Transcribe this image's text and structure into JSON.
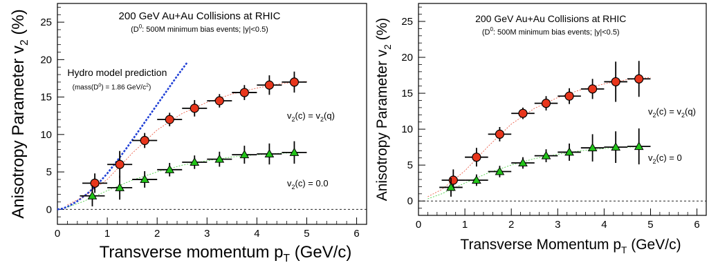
{
  "chart_data": [
    {
      "type": "scatter",
      "title": "200 GeV Au+Au Collisions at RHIC",
      "subtitle_pre": "(D",
      "subtitle_sup": "0",
      "subtitle_post": ": 500M minimum bias events; |y|<0.5)",
      "xlabel": "Transverse momentum p",
      "xlabel_sub": "T",
      "xlabel_unit": " (GeV/c)",
      "ylabel": "Anisotropy Parameter v",
      "ylabel_sub": "2",
      "ylabel_unit": " (%)",
      "xlim": [
        0,
        6.2
      ],
      "ylim": [
        -2,
        27.5
      ],
      "xticks": [
        "0",
        "1",
        "2",
        "3",
        "4",
        "5",
        "6"
      ],
      "yticks": [
        "0",
        "5",
        "10",
        "15",
        "20",
        "25"
      ],
      "hydro_label": "Hydro model prediction",
      "hydro_sublabel_pre": "(mass(D",
      "hydro_sublabel_sup": "0",
      "hydro_sublabel_mid": ") = 1.86 GeV/c",
      "hydro_sublabel_sup2": "2",
      "hydro_sublabel_post": ")",
      "hydro_curve": {
        "color": "#1f3fd6",
        "x": [
          0,
          0.1,
          0.2,
          0.3,
          0.4,
          0.5,
          0.6,
          0.8,
          1.0,
          1.2,
          1.4,
          1.6,
          1.8,
          2.0,
          2.2,
          2.4,
          2.6
        ],
        "y": [
          0,
          0.1,
          0.35,
          0.7,
          1.1,
          1.6,
          2.1,
          3.3,
          4.8,
          6.5,
          8.3,
          10.2,
          12.1,
          14.0,
          15.9,
          17.8,
          19.6
        ]
      },
      "series": [
        {
          "name_pre": "v",
          "name_sub": "2",
          "name_mid": "(c) = v",
          "name_sub2": "2",
          "name_post": "(q)",
          "marker": "circle",
          "color": "#e8361c",
          "x": [
            0.75,
            1.25,
            1.75,
            2.25,
            2.75,
            3.25,
            3.75,
            4.25,
            4.75
          ],
          "y": [
            3.5,
            6.0,
            9.2,
            12.0,
            13.5,
            14.5,
            15.6,
            16.6,
            17.0
          ],
          "yerr": [
            1.3,
            1.8,
            1.0,
            0.9,
            1.1,
            0.9,
            1.0,
            1.3,
            1.4
          ],
          "fit_x": [
            0.2,
            0.5,
            1.0,
            1.5,
            2.0,
            2.5,
            3.0,
            3.5,
            4.0,
            4.5,
            5.0
          ],
          "fit_y": [
            0.6,
            1.6,
            4.0,
            7.5,
            10.6,
            12.8,
            14.3,
            15.4,
            16.2,
            16.8,
            17.1
          ]
        },
        {
          "name_pre": "v",
          "name_sub": "2",
          "name_mid": "(c) = 0.0",
          "name_sub2": "",
          "name_post": "",
          "marker": "triangle",
          "color": "#22c419",
          "x": [
            0.7,
            1.25,
            1.75,
            2.25,
            2.75,
            3.25,
            3.75,
            4.25,
            4.75
          ],
          "y": [
            1.8,
            2.9,
            4.0,
            5.3,
            6.3,
            6.7,
            7.3,
            7.4,
            7.6
          ],
          "yerr": [
            1.4,
            1.6,
            1.1,
            0.9,
            0.9,
            1.0,
            1.2,
            1.4,
            1.5
          ],
          "fit_x": [
            0.2,
            0.5,
            1.0,
            1.5,
            2.0,
            2.5,
            3.0,
            3.5,
            4.0,
            4.5,
            5.0
          ],
          "fit_y": [
            0.3,
            1.0,
            2.5,
            3.9,
            5.0,
            5.9,
            6.5,
            7.0,
            7.3,
            7.5,
            7.6
          ]
        }
      ]
    },
    {
      "type": "scatter",
      "title": "200 GeV Au+Au Collisions at RHIC",
      "subtitle_pre": "(D",
      "subtitle_sup": "0",
      "subtitle_post": ": 500M minimum bias events; |y|<0.5)",
      "xlabel": "Transverse Momentum p",
      "xlabel_sub": "T",
      "xlabel_unit": " (GeV/c)",
      "ylabel": "Anisotropy Parameter v",
      "ylabel_sub": "2",
      "ylabel_unit": " (%)",
      "xlim": [
        0,
        6.2
      ],
      "ylim": [
        -2,
        27.5
      ],
      "xticks": [
        "0",
        "1",
        "2",
        "3",
        "4",
        "5",
        "6"
      ],
      "yticks": [
        "0",
        "5",
        "10",
        "15",
        "20",
        "25"
      ],
      "series": [
        {
          "name_pre": "v",
          "name_sub": "2",
          "name_mid": "(c) = v",
          "name_sub2": "2",
          "name_post": "(q)",
          "marker": "circle",
          "color": "#e8361c",
          "x": [
            0.75,
            1.25,
            1.75,
            2.25,
            2.75,
            3.25,
            3.75,
            4.25,
            4.75
          ],
          "y": [
            2.9,
            6.1,
            9.3,
            12.2,
            13.6,
            14.6,
            15.6,
            16.6,
            17.0
          ],
          "yerr": [
            1.5,
            1.3,
            1.0,
            0.8,
            1.0,
            1.1,
            1.4,
            2.8,
            2.5
          ],
          "fit_x": [
            0.2,
            0.5,
            1.0,
            1.5,
            2.0,
            2.5,
            3.0,
            3.5,
            4.0,
            4.5,
            5.0
          ],
          "fit_y": [
            0.6,
            1.6,
            4.2,
            7.6,
            10.7,
            12.9,
            14.4,
            15.5,
            16.3,
            16.9,
            17.2
          ]
        },
        {
          "name_pre": "v",
          "name_sub": "2",
          "name_mid": "(c) = 0",
          "name_sub2": "",
          "name_post": "",
          "marker": "triangle",
          "color": "#22c419",
          "x": [
            0.7,
            1.25,
            1.75,
            2.25,
            2.75,
            3.25,
            3.75,
            4.25,
            4.75
          ],
          "y": [
            1.9,
            2.9,
            4.1,
            5.3,
            6.3,
            6.8,
            7.4,
            7.5,
            7.6
          ],
          "yerr": [
            1.3,
            0.8,
            0.8,
            0.8,
            0.9,
            1.2,
            1.9,
            2.2,
            2.5
          ],
          "fit_x": [
            0.2,
            0.5,
            1.0,
            1.5,
            2.0,
            2.5,
            3.0,
            3.5,
            4.0,
            4.5,
            5.0
          ],
          "fit_y": [
            0.3,
            1.0,
            2.5,
            3.9,
            5.0,
            5.9,
            6.5,
            7.0,
            7.3,
            7.5,
            7.6
          ]
        }
      ]
    }
  ]
}
